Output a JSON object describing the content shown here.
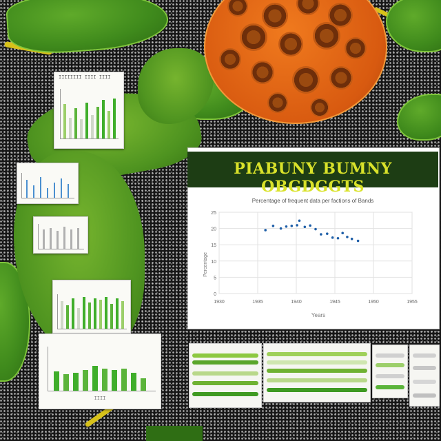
{
  "main_panel": {
    "title": "PIABUNY BUMNY OBGDGGTS",
    "subtitle": "Percentage of frequent data per factions of Bands",
    "ylabel": "Percentage",
    "xlabel": "Years",
    "x_ticks": [
      "1930",
      "1935",
      "1940",
      "1945",
      "1950",
      "1955"
    ],
    "y_ticks": [
      "25",
      "20",
      "15",
      "10",
      "5",
      "0"
    ]
  },
  "chart_data": {
    "type": "scatter",
    "title": "Percentage of frequent data per factions of Bands",
    "xlabel": "Years",
    "ylabel": "Percentage",
    "ylim": [
      0,
      25
    ],
    "x_ticks": [
      "1930",
      "1935",
      "1940",
      "1945",
      "1950",
      "1955"
    ],
    "y_ticks": [
      0,
      5,
      10,
      15,
      20,
      25
    ],
    "grid": true,
    "marker_color": "#1f5fa8",
    "series": [
      {
        "x": [
          1936,
          1937,
          1938,
          1938.7,
          1939.4,
          1940.1,
          1940.4,
          1941.1,
          1941.8,
          1942.5,
          1943.2,
          1944,
          1944.7,
          1945.4,
          1946,
          1946.6,
          1947.2,
          1948
        ],
        "y": [
          19.5,
          20.8,
          20.0,
          20.6,
          20.8,
          21.0,
          22.4,
          20.5,
          20.9,
          19.8,
          18.2,
          18.4,
          17.2,
          17.0,
          18.6,
          17.4,
          16.8,
          16.2
        ]
      }
    ]
  },
  "colors": {
    "accent": "#d9e22a",
    "header_bg": "#1d3d14",
    "leaf_green": "#4f9420",
    "flower_orange": "#e0661a",
    "bar_green": "#3fae2a",
    "bar_blue": "#4a8fd0"
  },
  "cards": {
    "top_left_caption": "IIIIIIII IIII IIII",
    "bottom_left_caption": "IIII"
  }
}
